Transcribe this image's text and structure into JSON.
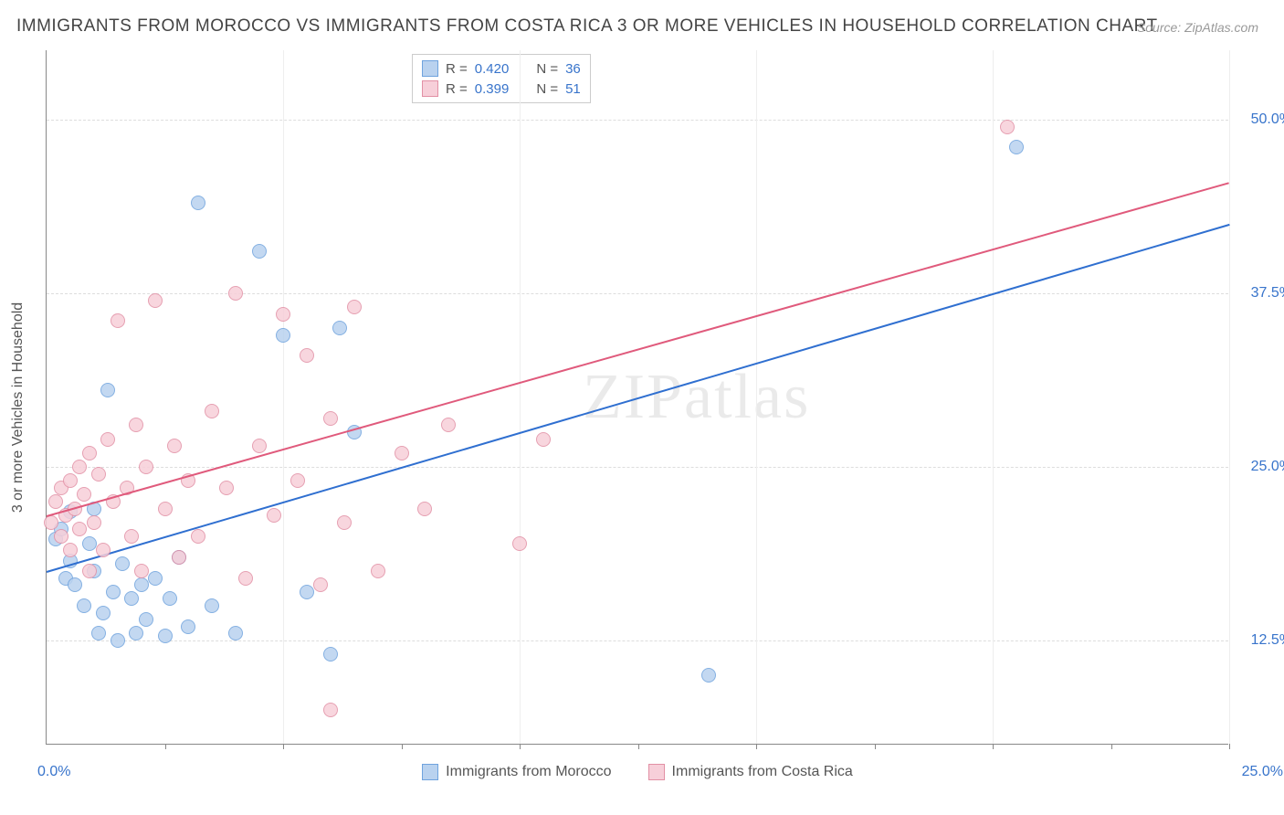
{
  "title": "IMMIGRANTS FROM MOROCCO VS IMMIGRANTS FROM COSTA RICA 3 OR MORE VEHICLES IN HOUSEHOLD CORRELATION CHART",
  "source": "Source: ZipAtlas.com",
  "y_axis_title": "3 or more Vehicles in Household",
  "watermark": "ZIPatlas",
  "chart": {
    "type": "scatter",
    "background_color": "#ffffff",
    "grid_color": "#dddddd",
    "axis_color": "#888888",
    "label_color": "#3874cb",
    "title_fontsize": 19,
    "label_fontsize": 16,
    "xlim": [
      0,
      25
    ],
    "ylim": [
      5,
      55
    ],
    "x_ticks": [
      0,
      25
    ],
    "x_grid": [
      2.5,
      5,
      7.5,
      10,
      12.5,
      15,
      17.5,
      20,
      22.5,
      25
    ],
    "y_ticks": [
      12.5,
      25.0,
      37.5,
      50.0
    ],
    "marker_radius": 8,
    "marker_border": 1,
    "trend_width": 2
  },
  "series": [
    {
      "name": "Immigrants from Morocco",
      "fill": "#b9d2ef",
      "stroke": "#6fa3de",
      "line_color": "#2f6fd0",
      "r": "0.420",
      "n": "36",
      "trend": {
        "x1": 0,
        "y1": 17.5,
        "x2": 25,
        "y2": 42.5
      },
      "points": [
        [
          0.2,
          19.8
        ],
        [
          0.3,
          20.5
        ],
        [
          0.4,
          17.0
        ],
        [
          0.5,
          18.2
        ],
        [
          0.5,
          21.8
        ],
        [
          0.6,
          16.5
        ],
        [
          0.8,
          15.0
        ],
        [
          0.9,
          19.5
        ],
        [
          1.0,
          22.0
        ],
        [
          1.0,
          17.5
        ],
        [
          1.1,
          13.0
        ],
        [
          1.2,
          14.5
        ],
        [
          1.3,
          30.5
        ],
        [
          1.4,
          16.0
        ],
        [
          1.5,
          12.5
        ],
        [
          1.6,
          18.0
        ],
        [
          1.8,
          15.5
        ],
        [
          1.9,
          13.0
        ],
        [
          2.0,
          16.5
        ],
        [
          2.1,
          14.0
        ],
        [
          2.3,
          17.0
        ],
        [
          2.5,
          12.8
        ],
        [
          2.6,
          15.5
        ],
        [
          2.8,
          18.5
        ],
        [
          3.0,
          13.5
        ],
        [
          3.2,
          44.0
        ],
        [
          3.5,
          15.0
        ],
        [
          4.0,
          13.0
        ],
        [
          4.5,
          40.5
        ],
        [
          5.0,
          34.5
        ],
        [
          5.5,
          16.0
        ],
        [
          6.0,
          11.5
        ],
        [
          6.2,
          35.0
        ],
        [
          6.5,
          27.5
        ],
        [
          14.0,
          10.0
        ],
        [
          20.5,
          48.0
        ]
      ]
    },
    {
      "name": "Immigrants from Costa Rica",
      "fill": "#f7cfd9",
      "stroke": "#e290a5",
      "line_color": "#e05a7c",
      "r": "0.399",
      "n": "51",
      "trend": {
        "x1": 0,
        "y1": 21.5,
        "x2": 25,
        "y2": 45.5
      },
      "points": [
        [
          0.1,
          21.0
        ],
        [
          0.2,
          22.5
        ],
        [
          0.3,
          20.0
        ],
        [
          0.3,
          23.5
        ],
        [
          0.4,
          21.5
        ],
        [
          0.5,
          24.0
        ],
        [
          0.5,
          19.0
        ],
        [
          0.6,
          22.0
        ],
        [
          0.7,
          25.0
        ],
        [
          0.7,
          20.5
        ],
        [
          0.8,
          23.0
        ],
        [
          0.9,
          17.5
        ],
        [
          0.9,
          26.0
        ],
        [
          1.0,
          21.0
        ],
        [
          1.1,
          24.5
        ],
        [
          1.2,
          19.0
        ],
        [
          1.3,
          27.0
        ],
        [
          1.4,
          22.5
        ],
        [
          1.5,
          35.5
        ],
        [
          1.7,
          23.5
        ],
        [
          1.8,
          20.0
        ],
        [
          1.9,
          28.0
        ],
        [
          2.0,
          17.5
        ],
        [
          2.1,
          25.0
        ],
        [
          2.3,
          37.0
        ],
        [
          2.5,
          22.0
        ],
        [
          2.7,
          26.5
        ],
        [
          2.8,
          18.5
        ],
        [
          3.0,
          24.0
        ],
        [
          3.2,
          20.0
        ],
        [
          3.5,
          29.0
        ],
        [
          3.8,
          23.5
        ],
        [
          4.0,
          37.5
        ],
        [
          4.2,
          17.0
        ],
        [
          4.5,
          26.5
        ],
        [
          4.8,
          21.5
        ],
        [
          5.0,
          36.0
        ],
        [
          5.3,
          24.0
        ],
        [
          5.5,
          33.0
        ],
        [
          5.8,
          16.5
        ],
        [
          6.0,
          28.5
        ],
        [
          6.3,
          21.0
        ],
        [
          6.5,
          36.5
        ],
        [
          7.0,
          17.5
        ],
        [
          7.5,
          26.0
        ],
        [
          8.0,
          22.0
        ],
        [
          8.5,
          28.0
        ],
        [
          10.0,
          19.5
        ],
        [
          10.5,
          27.0
        ],
        [
          6.0,
          7.5
        ],
        [
          20.3,
          49.5
        ]
      ]
    }
  ],
  "top_legend": {
    "r_label": "R =",
    "n_label": "N ="
  },
  "bottom_legend_series": [
    "Immigrants from Morocco",
    "Immigrants from Costa Rica"
  ]
}
